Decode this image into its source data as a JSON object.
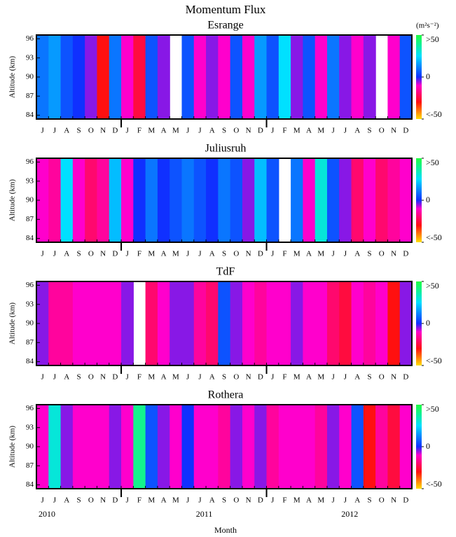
{
  "chart_data": {
    "type": "heatmap",
    "title": "Momentum Flux",
    "xlabel": "Month",
    "ylabel": "Altitude (km)",
    "categories": [
      "J",
      "J",
      "A",
      "S",
      "O",
      "N",
      "D",
      "J",
      "F",
      "M",
      "A",
      "M",
      "J",
      "J",
      "A",
      "S",
      "O",
      "N",
      "D",
      "J",
      "F",
      "M",
      "A",
      "M",
      "J",
      "J",
      "A",
      "S",
      "O",
      "N",
      "D"
    ],
    "years": [
      "2010",
      "2011",
      "2012"
    ],
    "ylim": [
      83.4,
      96.6
    ],
    "yticks": [
      84,
      87,
      90,
      93,
      96
    ],
    "colorbar": {
      "label": "(m²s⁻²)",
      "clim": [
        -50,
        50
      ],
      "ticks": [
        {
          "value": 50,
          "label": ">50"
        },
        0,
        {
          "value": -50,
          "label": "<-50"
        }
      ],
      "stops": [
        {
          "value": -50,
          "color": "#ffe000"
        },
        {
          "value": -30,
          "color": "#ff1010"
        },
        {
          "value": -10,
          "color": "#ff00cc"
        },
        {
          "value": 0,
          "color": "#1030ff"
        },
        {
          "value": 25,
          "color": "#00e0ff"
        },
        {
          "value": 50,
          "color": "#20ff40"
        }
      ]
    },
    "panels": [
      {
        "name": "Esrange",
        "values": [
          10,
          15,
          5,
          0,
          -5,
          -30,
          10,
          -10,
          -25,
          5,
          -5,
          null,
          5,
          -10,
          -5,
          -10,
          5,
          -10,
          15,
          5,
          25,
          -5,
          5,
          -10,
          10,
          -5,
          -10,
          -5,
          null,
          -10,
          5
        ]
      },
      {
        "name": "Juliusruh",
        "values": [
          -10,
          -15,
          25,
          -10,
          -20,
          -15,
          20,
          -10,
          0,
          10,
          0,
          5,
          10,
          5,
          0,
          10,
          5,
          -5,
          20,
          5,
          null,
          10,
          -10,
          30,
          5,
          -5,
          -20,
          -10,
          -20,
          -15,
          -10
        ]
      },
      {
        "name": "TdF",
        "values": [
          -5,
          -15,
          -15,
          -10,
          -10,
          -10,
          -10,
          -5,
          null,
          -20,
          -10,
          -5,
          -5,
          -15,
          -20,
          5,
          -5,
          -10,
          -15,
          -10,
          -10,
          -5,
          -10,
          -10,
          -20,
          -25,
          -10,
          -15,
          -10,
          -30,
          -5
        ]
      },
      {
        "name": "Rothera",
        "values": [
          -10,
          30,
          -5,
          -10,
          -10,
          -10,
          -5,
          -10,
          40,
          5,
          -5,
          -10,
          0,
          -10,
          -10,
          -15,
          -5,
          -10,
          -5,
          -15,
          -10,
          -10,
          -10,
          -15,
          -5,
          -10,
          5,
          -30,
          -15,
          -25,
          -10
        ]
      }
    ]
  }
}
